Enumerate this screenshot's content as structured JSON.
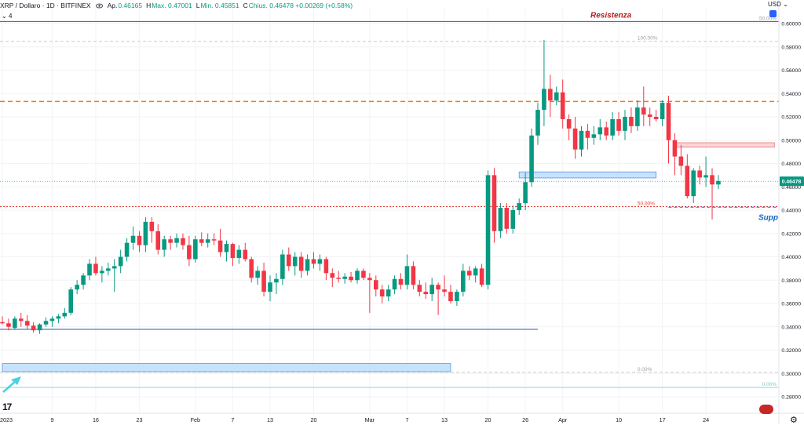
{
  "header": {
    "symbol": "XRP / Dollaro · 1D · BITFINEX",
    "ohlc": [
      {
        "key": "Ap.",
        "value": "0.46165"
      },
      {
        "key": "H",
        "value": "Max. 0.47001"
      },
      {
        "key": "L",
        "value": "Min. 0.45851"
      },
      {
        "key": "C",
        "value": "Chius. 0.46478 +0.00269 (+0.58%)"
      }
    ],
    "indicator_count": "4",
    "currency": "USD"
  },
  "chart_data": {
    "type": "candlestick",
    "symbol": "XRP / Dollaro",
    "interval": "1D",
    "exchange": "BITFINEX",
    "last_price": "0.46478",
    "ylim": [
      0.27,
      0.61
    ],
    "y_ticks": [
      "0.60000",
      "0.58000",
      "0.56000",
      "0.54000",
      "0.52000",
      "0.50000",
      "0.48000",
      "0.46000",
      "0.44000",
      "0.42000",
      "0.40000",
      "0.38000",
      "0.36000",
      "0.34000",
      "0.32000",
      "0.30000",
      "0.28000"
    ],
    "x_ticks": [
      "2023",
      "9",
      "16",
      "23",
      "Feb",
      "7",
      "13",
      "20",
      "Mar",
      "7",
      "13",
      "20",
      "26",
      "Apr",
      "10",
      "17",
      "24"
    ],
    "x_tick_days": [
      1,
      9,
      16,
      23,
      32,
      38,
      44,
      51,
      60,
      66,
      72,
      79,
      85,
      91,
      100,
      107,
      114
    ],
    "candles": [
      [
        1,
        0.344,
        0.349,
        0.342,
        0.343
      ],
      [
        2,
        0.343,
        0.347,
        0.337,
        0.34
      ],
      [
        3,
        0.339,
        0.349,
        0.338,
        0.347
      ],
      [
        4,
        0.347,
        0.352,
        0.34,
        0.345
      ],
      [
        5,
        0.345,
        0.35,
        0.338,
        0.341
      ],
      [
        6,
        0.341,
        0.344,
        0.335,
        0.337
      ],
      [
        7,
        0.337,
        0.343,
        0.334,
        0.342
      ],
      [
        8,
        0.342,
        0.348,
        0.34,
        0.345
      ],
      [
        9,
        0.345,
        0.349,
        0.34,
        0.347
      ],
      [
        10,
        0.347,
        0.351,
        0.343,
        0.349
      ],
      [
        11,
        0.349,
        0.356,
        0.347,
        0.352
      ],
      [
        12,
        0.352,
        0.374,
        0.35,
        0.372
      ],
      [
        13,
        0.372,
        0.38,
        0.368,
        0.376
      ],
      [
        14,
        0.376,
        0.386,
        0.372,
        0.384
      ],
      [
        15,
        0.384,
        0.398,
        0.38,
        0.394
      ],
      [
        16,
        0.394,
        0.4,
        0.384,
        0.386
      ],
      [
        17,
        0.386,
        0.392,
        0.378,
        0.388
      ],
      [
        18,
        0.388,
        0.395,
        0.384,
        0.39
      ],
      [
        19,
        0.39,
        0.398,
        0.37,
        0.392
      ],
      [
        20,
        0.392,
        0.406,
        0.386,
        0.4
      ],
      [
        21,
        0.4,
        0.416,
        0.396,
        0.412
      ],
      [
        22,
        0.412,
        0.426,
        0.406,
        0.418
      ],
      [
        23,
        0.418,
        0.422,
        0.404,
        0.41
      ],
      [
        24,
        0.41,
        0.434,
        0.404,
        0.43
      ],
      [
        25,
        0.43,
        0.434,
        0.412,
        0.422
      ],
      [
        26,
        0.422,
        0.428,
        0.402,
        0.406
      ],
      [
        27,
        0.406,
        0.418,
        0.4,
        0.415
      ],
      [
        28,
        0.415,
        0.418,
        0.406,
        0.412
      ],
      [
        29,
        0.412,
        0.42,
        0.408,
        0.416
      ],
      [
        30,
        0.416,
        0.42,
        0.406,
        0.41
      ],
      [
        31,
        0.41,
        0.418,
        0.392,
        0.398
      ],
      [
        32,
        0.398,
        0.418,
        0.395,
        0.415
      ],
      [
        33,
        0.415,
        0.421,
        0.409,
        0.412
      ],
      [
        34,
        0.412,
        0.42,
        0.408,
        0.415
      ],
      [
        35,
        0.415,
        0.42,
        0.41,
        0.414
      ],
      [
        36,
        0.414,
        0.424,
        0.4,
        0.404
      ],
      [
        37,
        0.404,
        0.414,
        0.396,
        0.411
      ],
      [
        38,
        0.411,
        0.412,
        0.392,
        0.399
      ],
      [
        39,
        0.399,
        0.41,
        0.394,
        0.406
      ],
      [
        40,
        0.406,
        0.412,
        0.396,
        0.398
      ],
      [
        41,
        0.398,
        0.4,
        0.378,
        0.382
      ],
      [
        42,
        0.382,
        0.392,
        0.376,
        0.388
      ],
      [
        43,
        0.388,
        0.395,
        0.366,
        0.37
      ],
      [
        44,
        0.37,
        0.384,
        0.362,
        0.378
      ],
      [
        45,
        0.378,
        0.386,
        0.368,
        0.381
      ],
      [
        46,
        0.381,
        0.406,
        0.376,
        0.402
      ],
      [
        47,
        0.402,
        0.408,
        0.388,
        0.392
      ],
      [
        48,
        0.392,
        0.404,
        0.384,
        0.4
      ],
      [
        49,
        0.4,
        0.404,
        0.382,
        0.388
      ],
      [
        50,
        0.388,
        0.402,
        0.384,
        0.398
      ],
      [
        51,
        0.398,
        0.404,
        0.39,
        0.394
      ],
      [
        52,
        0.394,
        0.402,
        0.388,
        0.398
      ],
      [
        53,
        0.398,
        0.4,
        0.38,
        0.386
      ],
      [
        54,
        0.386,
        0.39,
        0.374,
        0.382
      ],
      [
        55,
        0.382,
        0.388,
        0.378,
        0.381
      ],
      [
        56,
        0.381,
        0.386,
        0.377,
        0.383
      ],
      [
        57,
        0.383,
        0.387,
        0.378,
        0.38
      ],
      [
        58,
        0.38,
        0.39,
        0.377,
        0.388
      ],
      [
        59,
        0.388,
        0.39,
        0.38,
        0.382
      ],
      [
        60,
        0.382,
        0.386,
        0.352,
        0.38
      ],
      [
        61,
        0.38,
        0.384,
        0.366,
        0.372
      ],
      [
        62,
        0.372,
        0.376,
        0.36,
        0.366
      ],
      [
        63,
        0.366,
        0.376,
        0.362,
        0.372
      ],
      [
        64,
        0.372,
        0.384,
        0.368,
        0.381
      ],
      [
        65,
        0.381,
        0.386,
        0.372,
        0.376
      ],
      [
        66,
        0.376,
        0.402,
        0.372,
        0.392
      ],
      [
        67,
        0.392,
        0.396,
        0.372,
        0.376
      ],
      [
        68,
        0.376,
        0.38,
        0.366,
        0.37
      ],
      [
        69,
        0.37,
        0.378,
        0.364,
        0.368
      ],
      [
        70,
        0.368,
        0.382,
        0.362,
        0.376
      ],
      [
        71,
        0.376,
        0.378,
        0.35,
        0.372
      ],
      [
        72,
        0.372,
        0.384,
        0.366,
        0.37
      ],
      [
        73,
        0.37,
        0.376,
        0.36,
        0.362
      ],
      [
        74,
        0.362,
        0.372,
        0.358,
        0.37
      ],
      [
        75,
        0.37,
        0.394,
        0.366,
        0.388
      ],
      [
        76,
        0.388,
        0.392,
        0.38,
        0.384
      ],
      [
        77,
        0.384,
        0.392,
        0.378,
        0.39
      ],
      [
        78,
        0.39,
        0.394,
        0.374,
        0.376
      ],
      [
        79,
        0.376,
        0.474,
        0.372,
        0.47
      ],
      [
        80,
        0.47,
        0.476,
        0.412,
        0.422
      ],
      [
        81,
        0.422,
        0.446,
        0.416,
        0.442
      ],
      [
        82,
        0.442,
        0.446,
        0.42,
        0.424
      ],
      [
        83,
        0.424,
        0.444,
        0.42,
        0.44
      ],
      [
        84,
        0.44,
        0.45,
        0.436,
        0.446
      ],
      [
        85,
        0.446,
        0.472,
        0.44,
        0.464
      ],
      [
        86,
        0.464,
        0.51,
        0.46,
        0.504
      ],
      [
        87,
        0.504,
        0.532,
        0.496,
        0.526
      ],
      [
        88,
        0.526,
        0.586,
        0.512,
        0.544
      ],
      [
        89,
        0.544,
        0.556,
        0.52,
        0.534
      ],
      [
        90,
        0.534,
        0.546,
        0.53,
        0.541
      ],
      [
        91,
        0.541,
        0.552,
        0.51,
        0.518
      ],
      [
        92,
        0.518,
        0.522,
        0.5,
        0.51
      ],
      [
        93,
        0.51,
        0.52,
        0.484,
        0.492
      ],
      [
        94,
        0.492,
        0.512,
        0.486,
        0.508
      ],
      [
        95,
        0.508,
        0.514,
        0.492,
        0.502
      ],
      [
        96,
        0.502,
        0.512,
        0.496,
        0.505
      ],
      [
        97,
        0.505,
        0.518,
        0.5,
        0.511
      ],
      [
        98,
        0.511,
        0.516,
        0.5,
        0.504
      ],
      [
        99,
        0.504,
        0.524,
        0.5,
        0.518
      ],
      [
        100,
        0.518,
        0.524,
        0.504,
        0.508
      ],
      [
        101,
        0.508,
        0.526,
        0.5,
        0.52
      ],
      [
        102,
        0.52,
        0.528,
        0.506,
        0.512
      ],
      [
        103,
        0.512,
        0.534,
        0.508,
        0.528
      ],
      [
        104,
        0.528,
        0.546,
        0.512,
        0.522
      ],
      [
        105,
        0.522,
        0.528,
        0.512,
        0.52
      ],
      [
        106,
        0.52,
        0.526,
        0.516,
        0.518
      ],
      [
        107,
        0.518,
        0.534,
        0.512,
        0.532
      ],
      [
        108,
        0.532,
        0.538,
        0.48,
        0.5
      ],
      [
        109,
        0.5,
        0.506,
        0.47,
        0.486
      ],
      [
        110,
        0.486,
        0.496,
        0.47,
        0.478
      ],
      [
        111,
        0.478,
        0.488,
        0.45,
        0.452
      ],
      [
        112,
        0.452,
        0.476,
        0.446,
        0.474
      ],
      [
        113,
        0.474,
        0.478,
        0.462,
        0.468
      ],
      [
        114,
        0.468,
        0.486,
        0.46,
        0.47
      ],
      [
        115,
        0.47,
        0.476,
        0.432,
        0.462
      ],
      [
        116,
        0.462,
        0.47,
        0.458,
        0.465
      ]
    ],
    "levels": [
      {
        "label": "Resistenza",
        "value": 0.6018,
        "color": "#3f51b5",
        "style": "solid",
        "tag": "50.00%"
      },
      {
        "label": "",
        "value": 0.5848,
        "color": "#cccccc",
        "style": "dashed",
        "tag": "100.00%"
      },
      {
        "label": "",
        "value": 0.5332,
        "color": "#f57c00",
        "style": "dashed",
        "tag": ""
      },
      {
        "label": "",
        "value": 0.443,
        "color": "#e53935",
        "style": "dotted",
        "tag": "50.00%"
      },
      {
        "label": "Supp",
        "value": 0.4425,
        "color": "#2962ff",
        "style": "dashed",
        "tag": ""
      },
      {
        "label": "",
        "value": 0.3378,
        "color": "#3f51b5",
        "style": "solid",
        "tag": ""
      },
      {
        "label": "",
        "value": 0.301,
        "color": "#cccccc",
        "style": "dashed",
        "tag": "0.00%"
      },
      {
        "label": "",
        "value": 0.288,
        "color": "#80deea",
        "style": "solid",
        "tag": "0.00%"
      }
    ],
    "zones": [
      {
        "d0": 0,
        "d1": 72,
        "y0": 0.3085,
        "y1": 0.3015,
        "color": "#bbdefb"
      },
      {
        "d0": 83,
        "d1": 105,
        "y0": 0.4728,
        "y1": 0.4676,
        "color": "#bbdefb"
      },
      {
        "d0": 108,
        "d1": 124,
        "y0": 0.4978,
        "y1": 0.494,
        "color": "#ffcdd2"
      }
    ],
    "price_tag": {
      "value": 0.46478,
      "label": "0.46478"
    },
    "annotations": {
      "resistance": "Resistenza",
      "support": "Supp"
    },
    "colors": {
      "up": "#089981",
      "down": "#f23645"
    }
  }
}
